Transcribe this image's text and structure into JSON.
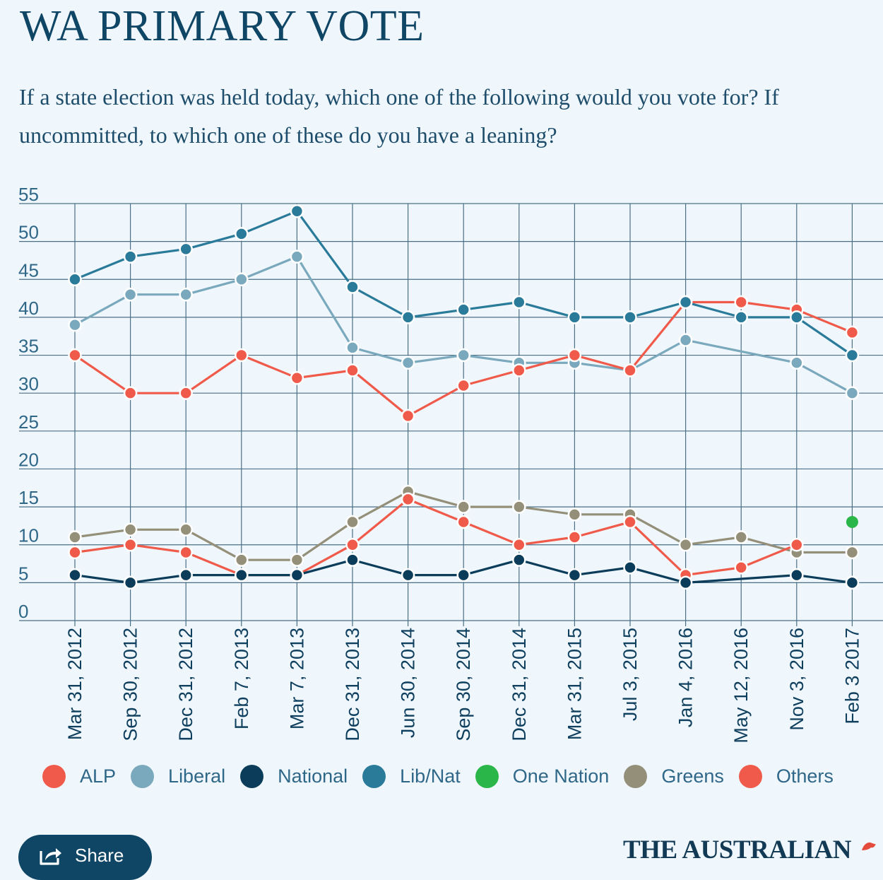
{
  "title": "WA PRIMARY VOTE",
  "subtitle": "If a state election was held today, which one of the following would you vote for? If uncommitted, to which one of these do you have a leaning?",
  "share_label": "Share",
  "brand": "THE AUSTRALIAN",
  "chart_data": {
    "type": "line",
    "categories": [
      "Mar 31, 2012",
      "Sep 30, 2012",
      "Dec 31, 2012",
      "Feb 7, 2013",
      "Mar 7, 2013",
      "Dec 31, 2013",
      "Jun 30, 2014",
      "Sep 30, 2014",
      "Dec 31, 2014",
      "Mar 31, 2015",
      "Jul 3, 2015",
      "Jan 4, 2016",
      "May 12, 2016",
      "Nov 3, 2016",
      "Feb 3 2017"
    ],
    "ylim": [
      0,
      55
    ],
    "yticks": [
      0,
      5,
      10,
      15,
      20,
      25,
      30,
      35,
      40,
      45,
      50,
      55
    ],
    "grid": true,
    "legend_position": "bottom",
    "series": [
      {
        "name": "ALP",
        "color": "#f05a4a",
        "values": [
          35,
          30,
          30,
          35,
          32,
          33,
          27,
          31,
          33,
          35,
          33,
          42,
          42,
          41,
          38
        ]
      },
      {
        "name": "Liberal",
        "color": "#7aa9bd",
        "values": [
          39,
          43,
          43,
          45,
          48,
          36,
          34,
          35,
          34,
          34,
          33,
          37,
          null,
          34,
          30
        ]
      },
      {
        "name": "National",
        "color": "#0b3d5b",
        "values": [
          6,
          5,
          6,
          6,
          6,
          8,
          6,
          6,
          8,
          6,
          7,
          5,
          null,
          6,
          5
        ]
      },
      {
        "name": "Lib/Nat",
        "color": "#2a7a9a",
        "values": [
          45,
          48,
          49,
          51,
          54,
          44,
          40,
          41,
          42,
          40,
          40,
          42,
          40,
          40,
          35
        ]
      },
      {
        "name": "One Nation",
        "color": "#2bb64a",
        "values": [
          null,
          null,
          null,
          null,
          null,
          null,
          null,
          null,
          null,
          null,
          null,
          null,
          null,
          null,
          13
        ]
      },
      {
        "name": "Greens",
        "color": "#948f79",
        "values": [
          11,
          12,
          12,
          8,
          8,
          13,
          17,
          15,
          15,
          14,
          14,
          10,
          11,
          9,
          9
        ]
      },
      {
        "name": "Others",
        "color": "#f05a4a",
        "values": [
          9,
          10,
          9,
          6,
          6,
          10,
          16,
          13,
          10,
          11,
          13,
          6,
          7,
          10,
          null
        ]
      }
    ]
  }
}
